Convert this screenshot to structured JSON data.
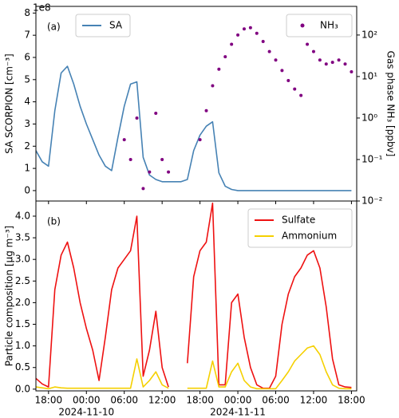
{
  "chart_data": [
    {
      "type": "line",
      "panel_label": "(a)",
      "ylabel": "SA SCORPION [cm⁻³]",
      "y_offset_label": "1e8",
      "y2label": "Gas phase NH₃ [ppbv]",
      "y2scale": "log",
      "ylim": [
        -0.47,
        8.3
      ],
      "yticks": [
        0,
        1,
        2,
        3,
        4,
        5,
        6,
        7,
        8
      ],
      "y2lim": [
        0.01,
        490
      ],
      "y2ticks": [
        {
          "value": 0.01,
          "label": "10⁻²"
        },
        {
          "value": 0.1,
          "label": "10⁻¹"
        },
        {
          "value": 1,
          "label": "10⁰"
        },
        {
          "value": 10,
          "label": "10¹"
        },
        {
          "value": 100,
          "label": "10²"
        }
      ],
      "x": [
        "2024-11-09T16:00",
        "2024-11-09T17:00",
        "2024-11-09T18:00",
        "2024-11-09T19:00",
        "2024-11-09T20:00",
        "2024-11-09T21:00",
        "2024-11-09T22:00",
        "2024-11-09T23:00",
        "2024-11-10T00:00",
        "2024-11-10T01:00",
        "2024-11-10T02:00",
        "2024-11-10T03:00",
        "2024-11-10T04:00",
        "2024-11-10T05:00",
        "2024-11-10T06:00",
        "2024-11-10T07:00",
        "2024-11-10T08:00",
        "2024-11-10T09:00",
        "2024-11-10T10:00",
        "2024-11-10T11:00",
        "2024-11-10T12:00",
        "2024-11-10T13:00",
        "2024-11-10T14:00",
        "2024-11-10T15:00",
        "2024-11-10T16:00",
        "2024-11-10T17:00",
        "2024-11-10T18:00",
        "2024-11-10T19:00",
        "2024-11-10T20:00",
        "2024-11-10T21:00",
        "2024-11-10T22:00",
        "2024-11-10T23:00",
        "2024-11-11T00:00",
        "2024-11-11T01:00",
        "2024-11-11T02:00",
        "2024-11-11T03:00",
        "2024-11-11T04:00",
        "2024-11-11T05:00",
        "2024-11-11T06:00",
        "2024-11-11T07:00",
        "2024-11-11T08:00",
        "2024-11-11T09:00",
        "2024-11-11T10:00",
        "2024-11-11T11:00",
        "2024-11-11T12:00",
        "2024-11-11T13:00",
        "2024-11-11T14:00",
        "2024-11-11T15:00",
        "2024-11-11T16:00",
        "2024-11-11T17:00",
        "2024-11-11T18:00"
      ],
      "series": [
        {
          "name": "SA",
          "type": "line",
          "color": "#4682b4",
          "legend": "upper left",
          "values": [
            1.8,
            1.3,
            1.1,
            3.6,
            5.3,
            5.6,
            4.8,
            3.8,
            3.0,
            2.3,
            1.6,
            1.1,
            0.9,
            2.4,
            3.8,
            4.8,
            4.9,
            1.5,
            0.7,
            0.5,
            0.4,
            0.4,
            0.4,
            0.4,
            0.5,
            1.8,
            2.5,
            2.9,
            3.1,
            0.8,
            0.2,
            0.05,
            0,
            0,
            0,
            0,
            0,
            0,
            0,
            0,
            0,
            0,
            0,
            0,
            0,
            0,
            0,
            0,
            0,
            0,
            0
          ]
        },
        {
          "name": "NH₃",
          "type": "scatter",
          "axis": "y2",
          "color": "#800080",
          "legend": "upper right",
          "values": [
            null,
            null,
            null,
            null,
            null,
            null,
            null,
            null,
            null,
            null,
            null,
            null,
            null,
            null,
            0.3,
            0.1,
            1.0,
            0.02,
            0.05,
            1.3,
            0.1,
            0.05,
            null,
            null,
            null,
            null,
            0.3,
            1.5,
            6,
            15,
            30,
            60,
            100,
            140,
            150,
            110,
            70,
            40,
            25,
            14,
            8,
            5,
            3.5,
            60,
            40,
            25,
            20,
            22,
            25,
            20,
            13
          ]
        }
      ]
    },
    {
      "type": "line",
      "panel_label": "(b)",
      "ylabel": "Particle composition [μg m⁻³]",
      "legend": "upper right",
      "ylim": [
        -0.04,
        4.35
      ],
      "yticks": [
        {
          "value": 0,
          "label": "0.0"
        },
        0.5,
        {
          "value": 1,
          "label": "1.0"
        },
        1.5,
        {
          "value": 2,
          "label": "2.0"
        },
        2.5,
        {
          "value": 3,
          "label": "3.0"
        },
        3.5,
        {
          "value": 4,
          "label": "4.0"
        }
      ],
      "xlim": [
        "2024-11-09T16:00",
        "2024-11-11T18:50"
      ],
      "xticks": [
        {
          "value": "2024-11-09T18:00",
          "label": "18:00"
        },
        {
          "value": "2024-11-10T00:00",
          "label": "00:00"
        },
        {
          "value": "2024-11-10T06:00",
          "label": "06:00"
        },
        {
          "value": "2024-11-10T12:00",
          "label": "12:00"
        },
        {
          "value": "2024-11-10T18:00",
          "label": "18:00"
        },
        {
          "value": "2024-11-11T00:00",
          "label": "00:00"
        },
        {
          "value": "2024-11-11T06:00",
          "label": "06:00"
        },
        {
          "value": "2024-11-11T12:00",
          "label": "12:00"
        },
        {
          "value": "2024-11-11T18:00",
          "label": "18:00"
        }
      ],
      "xdates": [
        {
          "value": "2024-11-10T00:00",
          "label": "2024-11-10"
        },
        {
          "value": "2024-11-11T00:00",
          "label": "2024-11-11"
        }
      ],
      "x": [
        "2024-11-09T16:00",
        "2024-11-09T17:00",
        "2024-11-09T18:00",
        "2024-11-09T19:00",
        "2024-11-09T20:00",
        "2024-11-09T21:00",
        "2024-11-09T22:00",
        "2024-11-09T23:00",
        "2024-11-10T00:00",
        "2024-11-10T01:00",
        "2024-11-10T02:00",
        "2024-11-10T03:00",
        "2024-11-10T04:00",
        "2024-11-10T05:00",
        "2024-11-10T06:00",
        "2024-11-10T07:00",
        "2024-11-10T08:00",
        "2024-11-10T09:00",
        "2024-11-10T10:00",
        "2024-11-10T11:00",
        "2024-11-10T12:00",
        "2024-11-10T13:00",
        "2024-11-10T14:00",
        "2024-11-10T15:00",
        "2024-11-10T16:00",
        "2024-11-10T17:00",
        "2024-11-10T18:00",
        "2024-11-10T19:00",
        "2024-11-10T20:00",
        "2024-11-10T21:00",
        "2024-11-10T22:00",
        "2024-11-10T23:00",
        "2024-11-11T00:00",
        "2024-11-11T01:00",
        "2024-11-11T02:00",
        "2024-11-11T03:00",
        "2024-11-11T04:00",
        "2024-11-11T05:00",
        "2024-11-11T06:00",
        "2024-11-11T07:00",
        "2024-11-11T08:00",
        "2024-11-11T09:00",
        "2024-11-11T10:00",
        "2024-11-11T11:00",
        "2024-11-11T12:00",
        "2024-11-11T13:00",
        "2024-11-11T14:00",
        "2024-11-11T15:00",
        "2024-11-11T16:00",
        "2024-11-11T17:00",
        "2024-11-11T18:00"
      ],
      "series": [
        {
          "name": "Sulfate",
          "type": "line",
          "color": "#ee1111",
          "values": [
            0.25,
            0.12,
            0.05,
            2.3,
            3.1,
            3.4,
            2.8,
            2.0,
            1.4,
            0.9,
            0.2,
            1.2,
            2.3,
            2.8,
            3.0,
            3.2,
            4.0,
            0.3,
            0.9,
            1.8,
            0.5,
            0.05,
            null,
            null,
            0.6,
            2.6,
            3.2,
            3.4,
            4.3,
            0.1,
            0.1,
            2.0,
            2.2,
            1.2,
            0.5,
            0.1,
            0.02,
            0.02,
            0.3,
            1.5,
            2.2,
            2.6,
            2.8,
            3.1,
            3.2,
            2.8,
            1.9,
            0.7,
            0.1,
            0.05,
            0.04
          ]
        },
        {
          "name": "Ammonium",
          "type": "line",
          "color": "#f5d000",
          "values": [
            0.05,
            0.03,
            0.01,
            0.05,
            0.03,
            0.02,
            0.02,
            0.02,
            0.02,
            0.02,
            0.02,
            0.02,
            0.02,
            0.02,
            0.02,
            0.02,
            0.7,
            0.05,
            0.2,
            0.4,
            0.1,
            0.02,
            null,
            null,
            0.02,
            0.02,
            0.02,
            0.02,
            0.65,
            0.05,
            0.05,
            0.4,
            0.6,
            0.2,
            0.05,
            0.01,
            0.01,
            0.01,
            0.01,
            0.2,
            0.4,
            0.65,
            0.8,
            0.95,
            1.0,
            0.8,
            0.4,
            0.1,
            0.02,
            0.01,
            0.01
          ]
        }
      ]
    }
  ]
}
